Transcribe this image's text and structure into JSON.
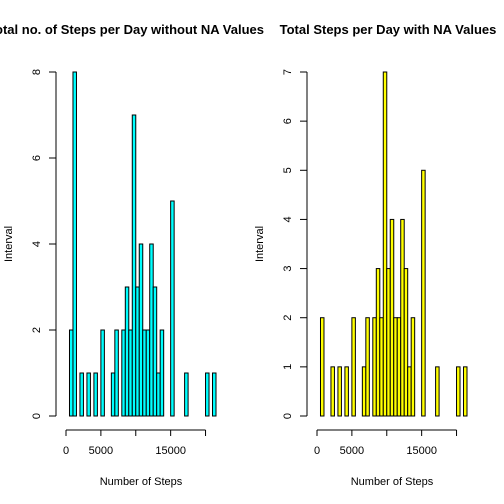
{
  "chart_data": [
    {
      "type": "bar",
      "title": "Total no. of Steps per Day without NA Values",
      "xlabel": "Number of Steps",
      "ylabel": "Interval",
      "bar_color": "#00ffff",
      "bin_width": 500,
      "xlim": [
        0,
        21500
      ],
      "ylim": [
        0,
        8
      ],
      "x_ticks": [
        0,
        5000,
        15000
      ],
      "x_tick_positions": [
        0,
        5000,
        10000,
        15000,
        20000
      ],
      "y_ticks": [
        0,
        2,
        4,
        6,
        8
      ],
      "bin_starts": [
        0,
        500,
        1000,
        1500,
        2000,
        2500,
        3000,
        3500,
        4000,
        4500,
        5000,
        5500,
        6000,
        6500,
        7000,
        7500,
        8000,
        8500,
        9000,
        9500,
        10000,
        10500,
        11000,
        11500,
        12000,
        12500,
        13000,
        13500,
        14000,
        14500,
        15000,
        15500,
        16000,
        16500,
        17000,
        17500,
        18000,
        18500,
        19000,
        19500,
        20000,
        20500,
        21000
      ],
      "values": [
        0,
        2,
        8,
        0,
        1,
        0,
        1,
        0,
        1,
        0,
        2,
        0,
        0,
        1,
        2,
        0,
        2,
        3,
        2,
        7,
        3,
        4,
        2,
        2,
        4,
        3,
        1,
        2,
        0,
        0,
        5,
        0,
        0,
        0,
        1,
        0,
        0,
        0,
        0,
        0,
        1,
        0,
        1
      ]
    },
    {
      "type": "bar",
      "title": "Total Steps per Day with NA Values",
      "xlabel": "Number of Steps",
      "ylabel": "Interval",
      "bar_color": "#ffff00",
      "bin_width": 500,
      "xlim": [
        0,
        21500
      ],
      "ylim": [
        0,
        7
      ],
      "x_ticks": [
        0,
        5000,
        15000
      ],
      "x_tick_positions": [
        0,
        5000,
        10000,
        15000,
        20000
      ],
      "y_ticks": [
        0,
        1,
        2,
        3,
        4,
        5,
        6,
        7
      ],
      "bin_starts": [
        0,
        500,
        1000,
        1500,
        2000,
        2500,
        3000,
        3500,
        4000,
        4500,
        5000,
        5500,
        6000,
        6500,
        7000,
        7500,
        8000,
        8500,
        9000,
        9500,
        10000,
        10500,
        11000,
        11500,
        12000,
        12500,
        13000,
        13500,
        14000,
        14500,
        15000,
        15500,
        16000,
        16500,
        17000,
        17500,
        18000,
        18500,
        19000,
        19500,
        20000,
        20500,
        21000
      ],
      "values": [
        0,
        2,
        0,
        0,
        1,
        0,
        1,
        0,
        1,
        0,
        2,
        0,
        0,
        1,
        2,
        0,
        2,
        3,
        2,
        7,
        3,
        4,
        2,
        2,
        4,
        3,
        1,
        2,
        0,
        0,
        5,
        0,
        0,
        0,
        1,
        0,
        0,
        0,
        0,
        0,
        1,
        0,
        1
      ]
    }
  ]
}
